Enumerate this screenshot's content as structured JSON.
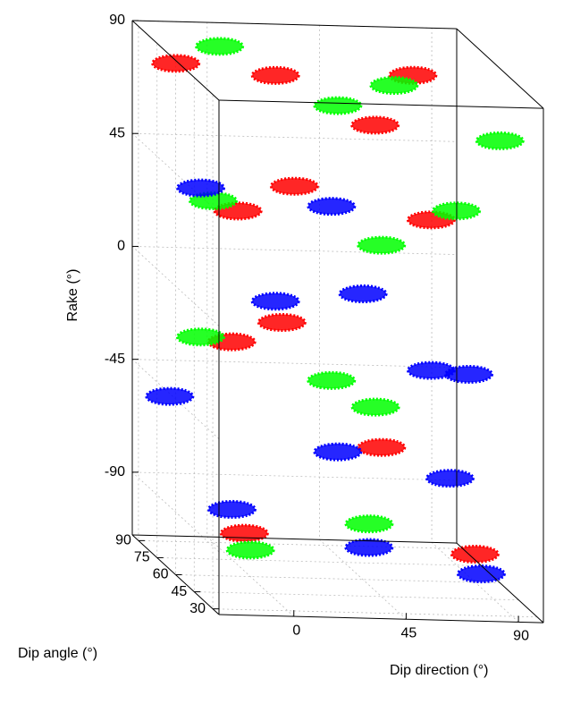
{
  "chart_data": {
    "type": "scatter3d",
    "xlabel": "Dip direction (°)",
    "ylabel": "Dip angle (°)",
    "zlabel": "Rake (°)",
    "xlim": [
      -30,
      100
    ],
    "xticks": [
      0,
      45,
      90
    ],
    "ylim": [
      25,
      95
    ],
    "yticks": [
      30,
      45,
      60,
      75,
      90
    ],
    "zlim": [
      -115,
      90
    ],
    "zticks": [
      -90,
      -45,
      0,
      45,
      90
    ],
    "grid": true,
    "series": [
      {
        "color": "#ff0000",
        "x": [
          -20,
          10,
          40,
          70,
          -10,
          30,
          60,
          -15,
          20,
          50,
          80,
          0
        ],
        "y": [
          80,
          60,
          40,
          70,
          50,
          85,
          35,
          45,
          75,
          55,
          40,
          65
        ],
        "z": [
          80,
          85,
          75,
          82,
          35,
          30,
          40,
          -15,
          -20,
          -60,
          -95,
          -100
        ]
      },
      {
        "color": "#00ff00",
        "x": [
          0,
          30,
          60,
          90,
          -10,
          45,
          80,
          -20,
          20,
          60,
          -5,
          50
        ],
        "y": [
          85,
          50,
          65,
          40,
          70,
          45,
          55,
          60,
          35,
          80,
          50,
          65
        ],
        "z": [
          85,
          78,
          80,
          70,
          30,
          25,
          35,
          -20,
          -25,
          -55,
          -100,
          -95
        ]
      },
      {
        "color": "#0000ff",
        "x": [
          -15,
          25,
          55,
          85,
          10,
          60,
          -20,
          30,
          70,
          0,
          45,
          85
        ],
        "y": [
          70,
          45,
          80,
          55,
          60,
          35,
          85,
          50,
          40,
          75,
          55,
          45
        ],
        "z": [
          35,
          40,
          -10,
          -30,
          -5,
          -20,
          -55,
          -60,
          -65,
          -95,
          -100,
          -105
        ]
      }
    ]
  }
}
